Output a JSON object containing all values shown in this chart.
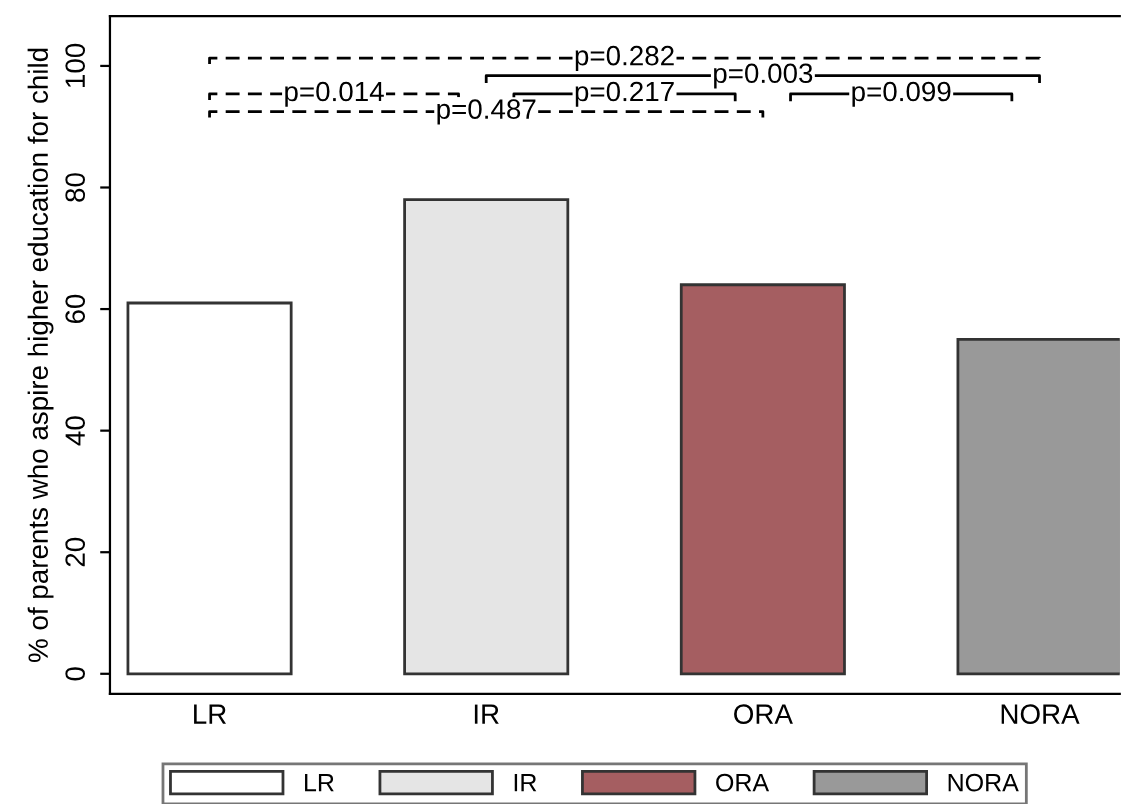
{
  "chart_data": {
    "type": "bar",
    "ylabel": "% of parents who aspire higher education for child",
    "categories": [
      "LR",
      "IR",
      "ORA",
      "NORA"
    ],
    "series": [
      {
        "name": "LR",
        "color": "#ffffff",
        "values": [
          61,
          null,
          null,
          null
        ]
      },
      {
        "name": "IR",
        "color": "#e5e5e5",
        "values": [
          null,
          78,
          null,
          null
        ]
      },
      {
        "name": "ORA",
        "color": "#a55e61",
        "values": [
          null,
          null,
          64,
          null
        ]
      },
      {
        "name": "NORA",
        "color": "#999999",
        "values": [
          null,
          null,
          null,
          55
        ]
      }
    ],
    "ylim": [
      -3.3,
      108.2
    ],
    "yticks": [
      0,
      20,
      40,
      60,
      80,
      100
    ],
    "grid": false,
    "legend": "bottom",
    "annotations": [
      "p=0.282",
      "p=0.003",
      "p=0.014",
      "p=0.217",
      "p=0.099",
      "p=0.487"
    ]
  }
}
